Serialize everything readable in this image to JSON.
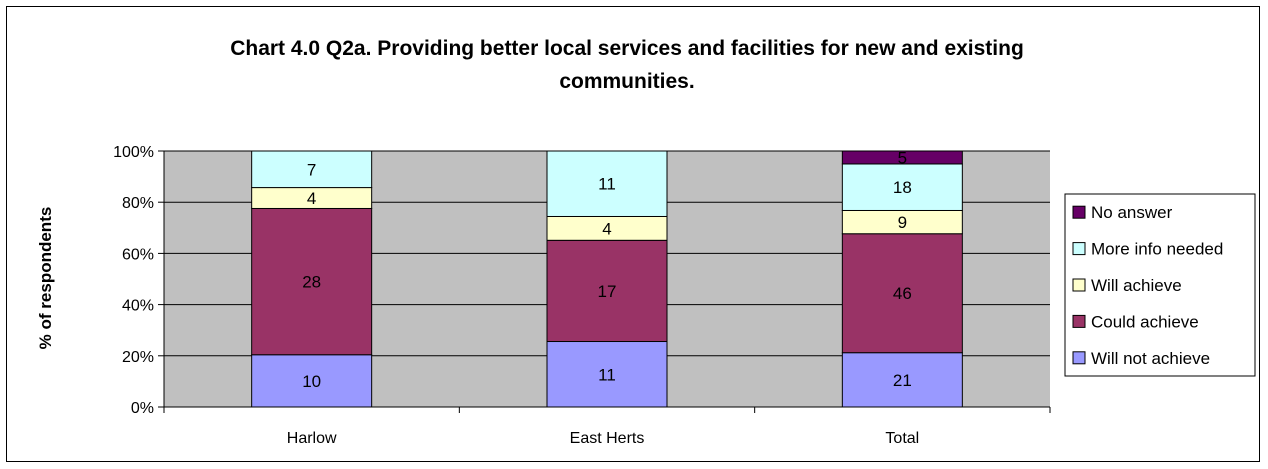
{
  "chart_data": {
    "type": "bar",
    "stacked": true,
    "percent_stacked": true,
    "title_lines": [
      "Chart 4.0 Q2a. Providing better local services and facilities for new and existing",
      "communities."
    ],
    "ylabel": "% of respondents",
    "xlabel": "",
    "categories": [
      "Harlow",
      "East Herts",
      "Total"
    ],
    "y_ticks": [
      "0%",
      "20%",
      "40%",
      "60%",
      "80%",
      "100%"
    ],
    "ylim": [
      0,
      100
    ],
    "grid": true,
    "legend_position": "right",
    "series": [
      {
        "name": "Will not achieve",
        "values": [
          10,
          11,
          21
        ],
        "color": "#9999FF"
      },
      {
        "name": "Could achieve",
        "values": [
          28,
          17,
          46
        ],
        "color": "#993366"
      },
      {
        "name": "Will achieve",
        "values": [
          4,
          4,
          9
        ],
        "color": "#FFFFCC"
      },
      {
        "name": "More info needed",
        "values": [
          7,
          11,
          18
        ],
        "color": "#CCFFFF"
      },
      {
        "name": "No answer",
        "values": [
          0,
          0,
          5
        ],
        "color": "#660066"
      }
    ],
    "plot_background": "#C0C0C0"
  }
}
